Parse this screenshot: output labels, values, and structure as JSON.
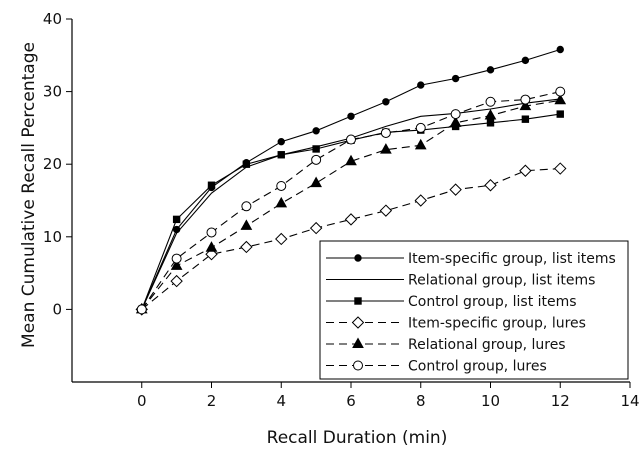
{
  "chart_data": {
    "type": "line",
    "xlabel": "Recall Duration (min)",
    "ylabel": "Mean Cumulative Recall Percentage",
    "xlim": [
      -2,
      14
    ],
    "ylim": [
      -10,
      40
    ],
    "xticks": [
      0,
      2,
      4,
      6,
      8,
      10,
      12,
      14
    ],
    "yticks": [
      0,
      10,
      20,
      30,
      40
    ],
    "grid": false,
    "legend_position": "bottom-right",
    "x": [
      0,
      1,
      2,
      3,
      4,
      5,
      6,
      7,
      8,
      9,
      10,
      11,
      12
    ],
    "series": [
      {
        "name": "Item-specific group, list items",
        "line": "solid",
        "marker": "dot",
        "values": [
          0,
          11,
          16.8,
          20.2,
          23.1,
          24.6,
          26.6,
          28.6,
          30.9,
          31.8,
          33.0,
          34.3,
          35.8
        ]
      },
      {
        "name": "Relational group, list items",
        "line": "solid",
        "marker": "none",
        "values": [
          0,
          10.5,
          16.0,
          19.6,
          21.3,
          22.4,
          23.6,
          25.2,
          26.6,
          27.0,
          27.6,
          28.4,
          29.0
        ]
      },
      {
        "name": "Control group, list items",
        "line": "solid",
        "marker": "square",
        "values": [
          0,
          12.4,
          17.1,
          20.0,
          21.3,
          22.1,
          23.3,
          24.4,
          24.7,
          25.2,
          25.7,
          26.2,
          26.9
        ]
      },
      {
        "name": "Item-specific group, lures",
        "line": "dashed",
        "marker": "diamond-open",
        "values": [
          0,
          3.9,
          7.6,
          8.6,
          9.7,
          11.2,
          12.4,
          13.6,
          15.0,
          16.5,
          17.1,
          19.1,
          19.4
        ]
      },
      {
        "name": "Relational group, lures",
        "line": "dashed",
        "marker": "triangle",
        "values": [
          0,
          6.0,
          8.5,
          11.5,
          14.6,
          17.4,
          20.4,
          22.0,
          22.6,
          25.7,
          26.7,
          28.0,
          28.8
        ]
      },
      {
        "name": "Control group, lures",
        "line": "dashed",
        "marker": "circle-open",
        "values": [
          0,
          7.0,
          10.6,
          14.2,
          17.0,
          20.6,
          23.4,
          24.3,
          25.0,
          26.9,
          28.6,
          28.9,
          30.0
        ]
      }
    ]
  }
}
